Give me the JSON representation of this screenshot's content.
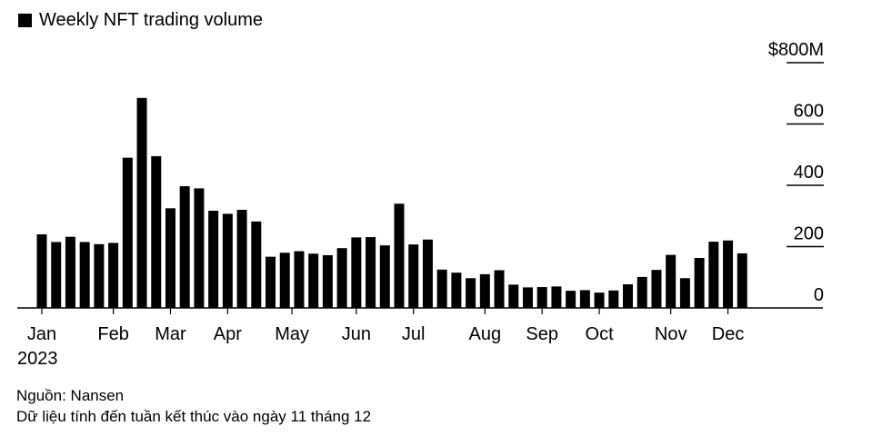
{
  "chart_data": {
    "type": "bar",
    "title": "Weekly NFT trading volume",
    "legend": [
      "Weekly NFT trading volume"
    ],
    "legend_position": "top-left",
    "ylim": [
      0,
      800
    ],
    "y_ticks": [
      {
        "value": 0,
        "label": "0"
      },
      {
        "value": 200,
        "label": "200"
      },
      {
        "value": 400,
        "label": "400"
      },
      {
        "value": 600,
        "label": "600"
      },
      {
        "value": 800,
        "label": "$800M"
      }
    ],
    "y_axis_side": "right",
    "grid": false,
    "x_ticks": [
      {
        "week": 0,
        "label": "Jan",
        "sublabel": "2023"
      },
      {
        "week": 5,
        "label": "Feb"
      },
      {
        "week": 9,
        "label": "Mar"
      },
      {
        "week": 13,
        "label": "Apr"
      },
      {
        "week": 17.5,
        "label": "May"
      },
      {
        "week": 22,
        "label": "Jun"
      },
      {
        "week": 26,
        "label": "Jul"
      },
      {
        "week": 31,
        "label": "Aug"
      },
      {
        "week": 35,
        "label": "Sep"
      },
      {
        "week": 39,
        "label": "Oct"
      },
      {
        "week": 44,
        "label": "Nov"
      },
      {
        "week": 48,
        "label": "Dec"
      }
    ],
    "values": [
      240,
      215,
      232,
      215,
      208,
      212,
      490,
      685,
      495,
      325,
      397,
      390,
      317,
      307,
      320,
      282,
      167,
      180,
      185,
      177,
      172,
      195,
      230,
      231,
      204,
      340,
      207,
      223,
      125,
      115,
      97,
      110,
      123,
      76,
      67,
      68,
      70,
      56,
      58,
      50,
      57,
      77,
      101,
      124,
      173,
      97,
      163,
      216,
      220,
      178
    ],
    "color": "#000000"
  },
  "footer": {
    "source": "Nguồn: Nansen",
    "note": "Dữ liệu tính đến tuần kết thúc vào ngày 11 tháng 12"
  }
}
